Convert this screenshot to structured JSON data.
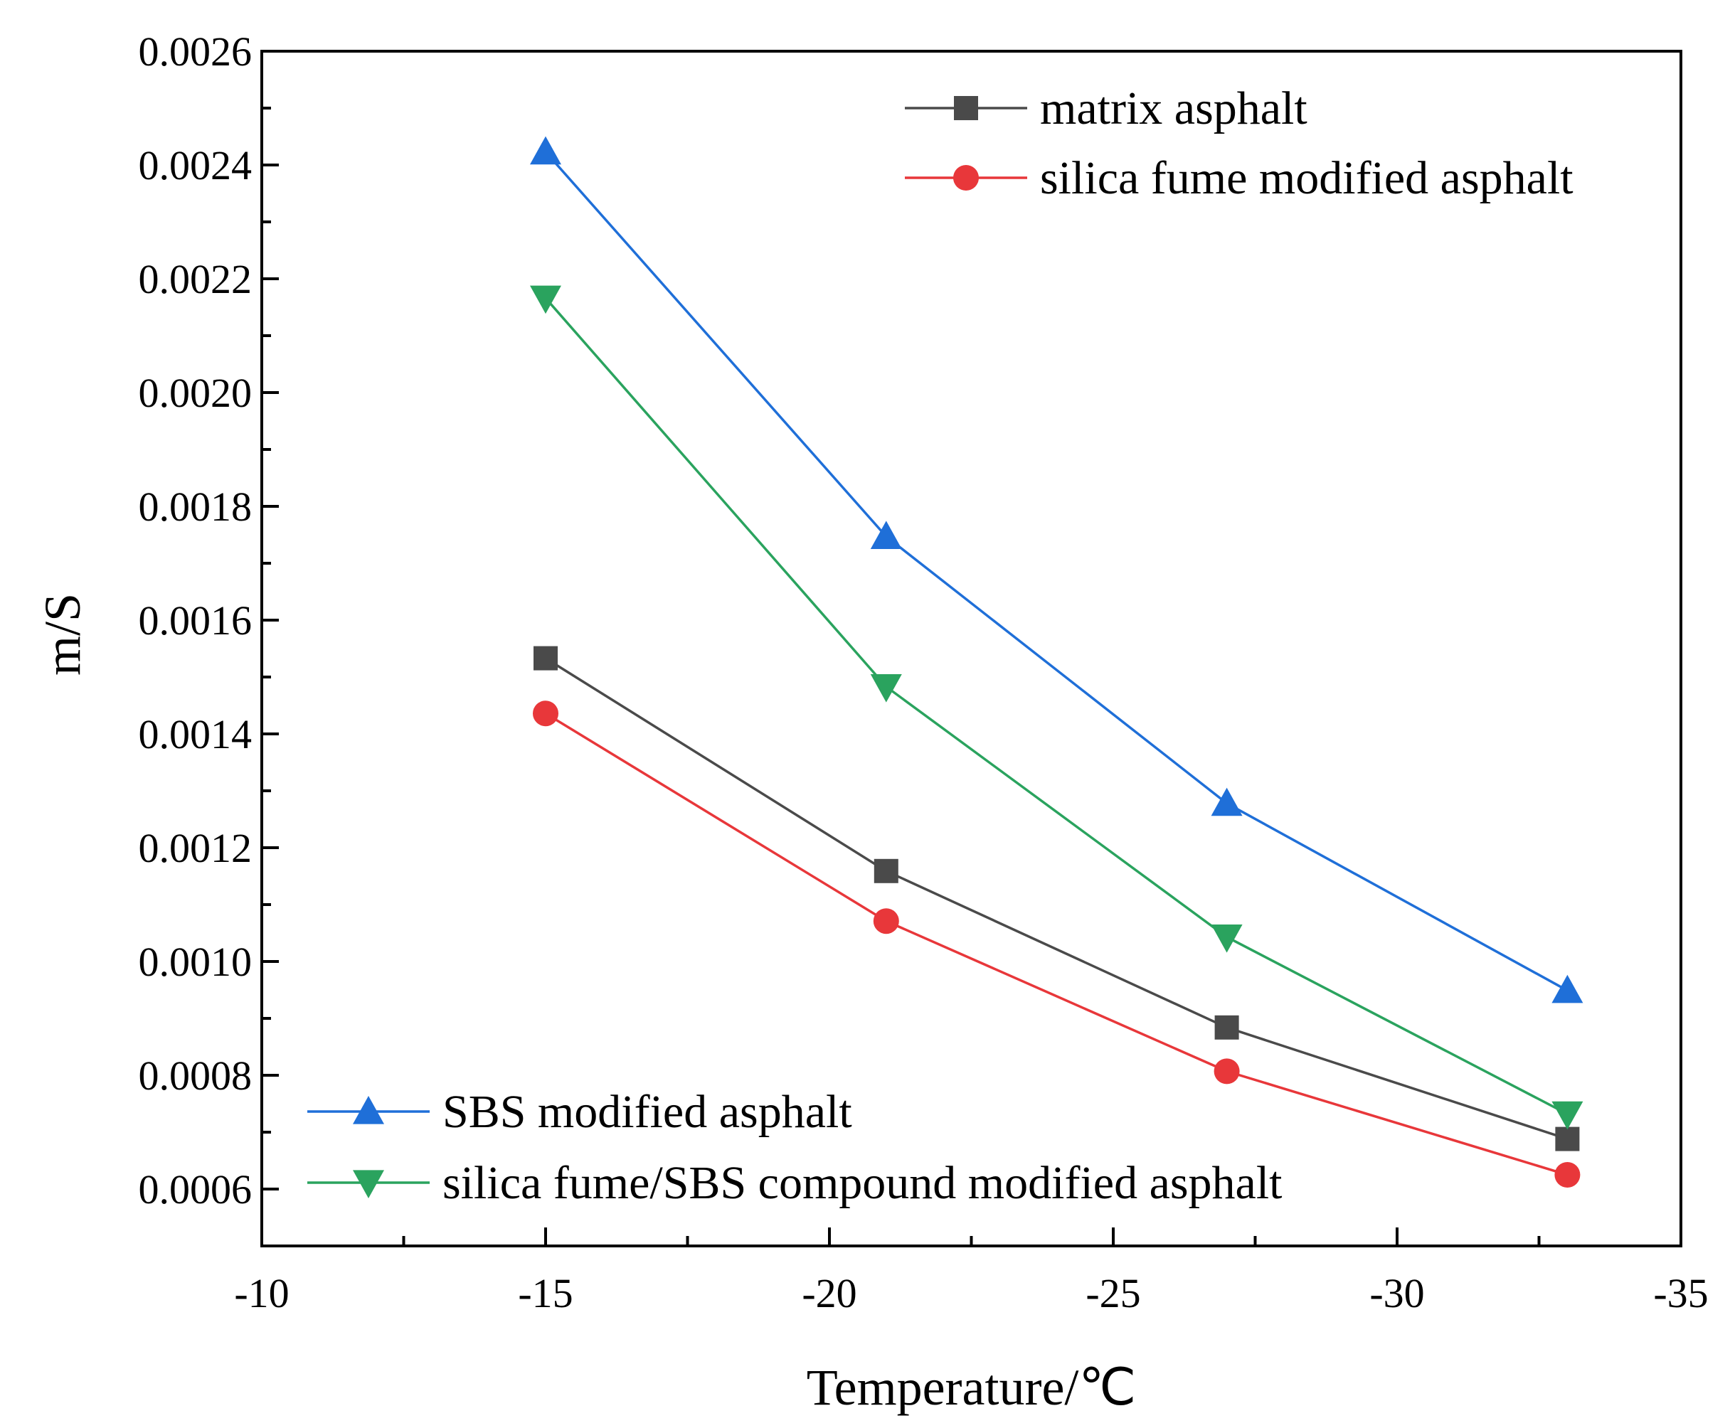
{
  "chart_data": {
    "type": "line",
    "title": "",
    "xlabel": "Temperature/℃",
    "ylabel": "m/S",
    "x": [
      -15,
      -21,
      -27,
      -33
    ],
    "xlim": [
      -10,
      -35
    ],
    "x_reversed": true,
    "ylim": [
      0.0005,
      0.0026
    ],
    "x_ticks": [
      -10,
      -15,
      -20,
      -25,
      -30,
      -35
    ],
    "x_tick_labels": [
      "-10",
      "-15",
      "-20",
      "-25",
      "-30",
      "-35"
    ],
    "y_ticks": [
      0.0006,
      0.0008,
      0.001,
      0.0012,
      0.0014,
      0.0016,
      0.0018,
      0.002,
      0.0022,
      0.0024,
      0.0026
    ],
    "y_tick_labels": [
      "0.0006",
      "0.0008",
      "0.0010",
      "0.0012",
      "0.0014",
      "0.0016",
      "0.0018",
      "0.0020",
      "0.0022",
      "0.0024",
      "0.0026"
    ],
    "grid": false,
    "series": [
      {
        "name": "matrix asphalt",
        "marker": "square",
        "color": "#4a4a4a",
        "values": [
          0.001533,
          0.001159,
          0.000884,
          0.000688
        ]
      },
      {
        "name": "silica fume modified asphalt",
        "marker": "circle",
        "color": "#e8373a",
        "values": [
          0.001436,
          0.001071,
          0.000807,
          0.000625
        ]
      },
      {
        "name": "SBS modified asphalt",
        "marker": "triangle-up",
        "color": "#1f6fd8",
        "values": [
          0.002423,
          0.001747,
          0.001278,
          0.000949
        ]
      },
      {
        "name": "silica fume/SBS compound modified asphalt",
        "marker": "triangle-down",
        "color": "#2aa35e",
        "values": [
          0.002166,
          0.001483,
          0.001043,
          0.000732
        ]
      }
    ],
    "legends": [
      {
        "placement": "top-right",
        "series": [
          0,
          1
        ]
      },
      {
        "placement": "bottom-left",
        "series": [
          2,
          3
        ]
      }
    ]
  }
}
